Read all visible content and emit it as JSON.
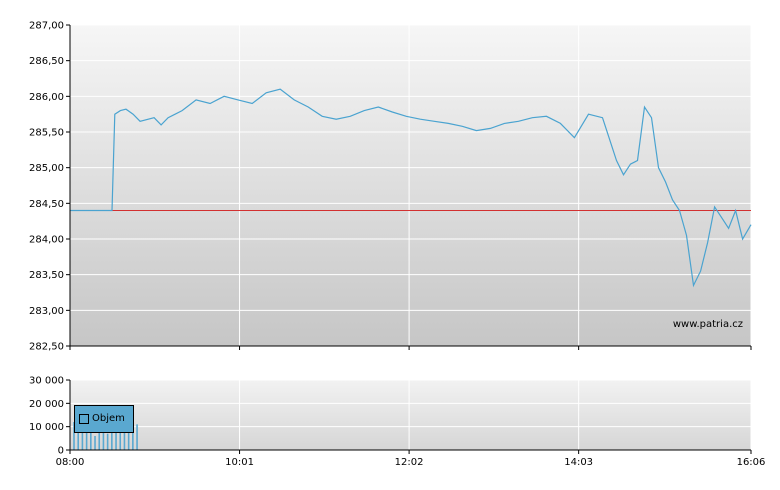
{
  "watermark": "www.patria.cz",
  "colors": {
    "price_line": "#4aa3d0",
    "reference_line": "#d23030",
    "volume_bars": "#5aa8d0",
    "bg_top": "#f4f4f4",
    "bg_bottom": "#c8c8c8",
    "grid": "#ffffff"
  },
  "chart_data": [
    {
      "type": "line",
      "title": "",
      "ylim": [
        282.5,
        287.0
      ],
      "y_ticks": [
        "287,00",
        "286,50",
        "286,00",
        "285,50",
        "285,00",
        "284,50",
        "284,00",
        "283,50",
        "283,00",
        "282,50"
      ],
      "y_tick_values": [
        287.0,
        286.5,
        286.0,
        285.5,
        285.0,
        284.5,
        284.0,
        283.5,
        283.0,
        282.5
      ],
      "reference_value": 284.4,
      "series": [
        {
          "x": [
            "08:00",
            "08:30",
            "08:32",
            "08:36",
            "08:40",
            "08:45",
            "08:50",
            "09:00",
            "09:05",
            "09:10",
            "09:15",
            "09:20",
            "09:30",
            "09:40",
            "09:50",
            "10:00",
            "10:10",
            "10:20",
            "10:30",
            "10:40",
            "10:50",
            "11:00",
            "11:10",
            "11:20",
            "11:30",
            "11:40",
            "11:50",
            "12:00",
            "12:10",
            "12:20",
            "12:30",
            "12:40",
            "12:50",
            "13:00",
            "13:10",
            "13:20",
            "13:30",
            "13:40",
            "13:50",
            "14:00",
            "14:10",
            "14:20",
            "14:30",
            "14:35",
            "14:40",
            "14:45",
            "14:50",
            "14:55",
            "15:00",
            "15:05",
            "15:10",
            "15:15",
            "15:20",
            "15:25",
            "15:30",
            "15:35",
            "15:40",
            "15:45",
            "15:50",
            "15:55",
            "16:00",
            "16:06"
          ],
          "y": [
            284.4,
            284.4,
            285.75,
            285.8,
            285.82,
            285.75,
            285.65,
            285.7,
            285.6,
            285.7,
            285.75,
            285.8,
            285.95,
            285.9,
            286.0,
            285.95,
            285.9,
            286.05,
            286.1,
            285.95,
            285.85,
            285.72,
            285.68,
            285.72,
            285.8,
            285.85,
            285.78,
            285.72,
            285.68,
            285.65,
            285.62,
            285.58,
            285.52,
            285.55,
            285.62,
            285.65,
            285.7,
            285.72,
            285.62,
            285.42,
            285.75,
            285.7,
            285.1,
            284.9,
            285.05,
            285.1,
            285.85,
            285.7,
            285.0,
            284.8,
            284.55,
            284.4,
            284.05,
            283.35,
            283.55,
            283.95,
            284.45,
            284.3,
            284.15,
            284.4,
            284.0,
            284.2
          ]
        }
      ]
    },
    {
      "type": "bar",
      "title": "",
      "ylim": [
        0,
        30000
      ],
      "y_ticks": [
        "30 000",
        "20 000",
        "10 000",
        "0"
      ],
      "y_tick_values": [
        30000,
        20000,
        10000,
        0
      ],
      "legend": [
        "Objem"
      ],
      "x_ticks": [
        "08:00",
        "10:01",
        "12:02",
        "14:03",
        "16:06"
      ],
      "x_tick_minutes": [
        0,
        121,
        242,
        363,
        486
      ],
      "series": [
        {
          "name": "Objem",
          "x": [
            "08:03",
            "08:06",
            "08:09",
            "08:12",
            "08:15",
            "08:18",
            "08:21",
            "08:24",
            "08:27",
            "08:30",
            "08:33",
            "08:36",
            "08:39",
            "08:42",
            "08:45",
            "08:48"
          ],
          "values": [
            12000,
            8000,
            15000,
            9000,
            14000,
            6000,
            11000,
            13000,
            7000,
            16000,
            10000,
            12000,
            9000,
            15000,
            8000,
            11000
          ]
        }
      ]
    }
  ]
}
